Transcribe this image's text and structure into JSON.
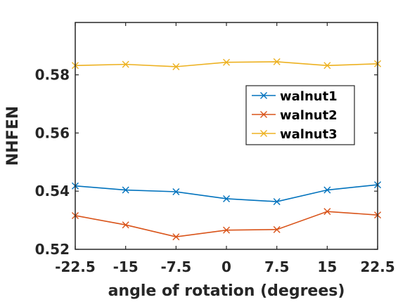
{
  "chart_data": {
    "type": "line",
    "title": "",
    "xlabel": "angle of rotation (degrees)",
    "ylabel": "NHFEN",
    "x": [
      -22.5,
      -15,
      -7.5,
      0,
      7.5,
      15,
      22.5
    ],
    "x_tick_labels": [
      "-22.5",
      "-15",
      "-7.5",
      "0",
      "7.5",
      "15",
      "22.5"
    ],
    "xlim": [
      -22.5,
      22.5
    ],
    "ylim": [
      0.52,
      0.598
    ],
    "y_ticks": [
      0.52,
      0.54,
      0.56,
      0.58
    ],
    "y_tick_labels": [
      "0.52",
      "0.54",
      "0.56",
      "0.58"
    ],
    "grid": false,
    "legend_position": "upper-right",
    "marker": "x",
    "series": [
      {
        "name": "walnut1",
        "color": "#0072BD",
        "values": [
          0.5418,
          0.5404,
          0.5398,
          0.5374,
          0.5364,
          0.5404,
          0.5422
        ]
      },
      {
        "name": "walnut2",
        "color": "#D95319",
        "values": [
          0.5316,
          0.5284,
          0.5243,
          0.5266,
          0.5268,
          0.533,
          0.5318
        ]
      },
      {
        "name": "walnut3",
        "color": "#EDB120",
        "values": [
          0.5832,
          0.5836,
          0.5828,
          0.5843,
          0.5845,
          0.5832,
          0.5838
        ]
      }
    ]
  }
}
